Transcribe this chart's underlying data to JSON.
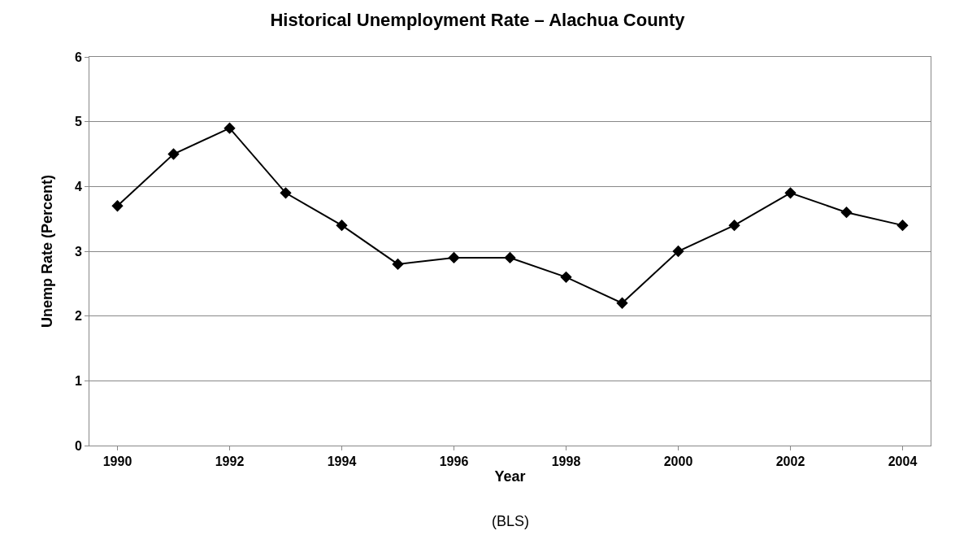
{
  "chart_data": {
    "type": "line",
    "title": "Historical Unemployment Rate – Alachua County",
    "xlabel": "Year",
    "ylabel": "Unemp Rate (Percent)",
    "x": [
      1990,
      1991,
      1992,
      1993,
      1994,
      1995,
      1996,
      1997,
      1998,
      1999,
      2000,
      2001,
      2002,
      2003,
      2004
    ],
    "series": [
      {
        "color": "#000000",
        "values": [
          3.7,
          4.5,
          4.9,
          3.9,
          3.4,
          2.8,
          2.9,
          2.9,
          2.6,
          2.2,
          3.0,
          3.4,
          3.9,
          3.6,
          3.4
        ]
      }
    ],
    "xlim": [
      1989.5,
      2004.5
    ],
    "xticks": [
      1990,
      1992,
      1994,
      1996,
      1998,
      2000,
      2002,
      2004
    ],
    "ylim": [
      0,
      6
    ],
    "yticks": [
      0,
      1,
      2,
      3,
      4,
      5,
      6
    ],
    "grid": "y",
    "marker": "diamond",
    "line_style": "solid",
    "annotations": [
      "(BLS)"
    ]
  }
}
